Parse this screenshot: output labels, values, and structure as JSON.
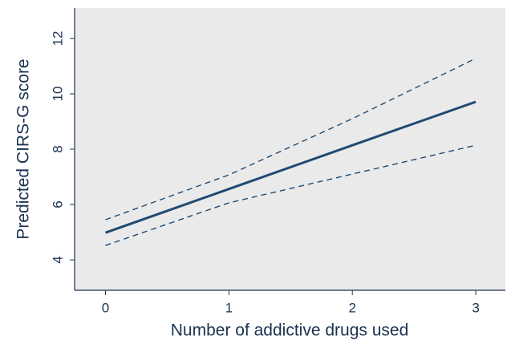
{
  "chart_data": {
    "type": "line",
    "x_label": "Number of addictive drugs used",
    "y_label": "Predicted CIRS-G score",
    "x": [
      0,
      1,
      2,
      3
    ],
    "series": [
      {
        "color": "#1f4a73",
        "dashed": false,
        "width": 3,
        "values": [
          4.98,
          6.56,
          8.14,
          9.71
        ]
      },
      {
        "color": "#1f4a73",
        "dashed": true,
        "width": 1.4,
        "values": [
          5.45,
          7.07,
          9.1,
          11.28
        ]
      },
      {
        "color": "#1f4a73",
        "dashed": true,
        "width": 1.4,
        "values": [
          4.52,
          6.06,
          7.1,
          8.14
        ]
      }
    ],
    "xlim": [
      -0.25,
      3.24
    ],
    "ylim": [
      2.9,
      13.1
    ],
    "xticks": [
      0,
      1,
      2,
      3
    ],
    "yticks": [
      4,
      6,
      8,
      10,
      12
    ],
    "plot_background": "#eaeaea",
    "grid": false
  }
}
